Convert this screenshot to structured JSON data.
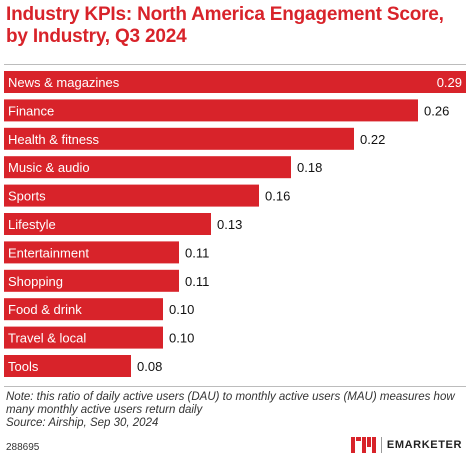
{
  "header": {
    "title": "Industry KPIs: North America Engagement Score, by Industry, Q3 2024"
  },
  "chart_data": {
    "type": "bar",
    "orientation": "horizontal",
    "categories": [
      "News & magazines",
      "Finance",
      "Health & fitness",
      "Music & audio",
      "Sports",
      "Lifestyle",
      "Entertainment",
      "Shopping",
      "Food & drink",
      "Travel & local",
      "Tools"
    ],
    "value_labels": [
      "0.29",
      "0.26",
      "0.22",
      "0.18",
      "0.16",
      "0.13",
      "0.11",
      "0.11",
      "0.10",
      "0.10",
      "0.08"
    ],
    "values": [
      0.29,
      0.26,
      0.22,
      0.18,
      0.16,
      0.13,
      0.11,
      0.11,
      0.1,
      0.1,
      0.08
    ],
    "bar_color": "#d8232a",
    "xlim": [
      0,
      0.29
    ],
    "grid": false
  },
  "footer": {
    "note": "Note: this ratio of daily active users (DAU) to monthly active users (MAU) measures how many monthly active users return daily",
    "source": "Source: Airship, Sep 30, 2024",
    "chart_id": "288695",
    "brand": "EMARKETER"
  }
}
